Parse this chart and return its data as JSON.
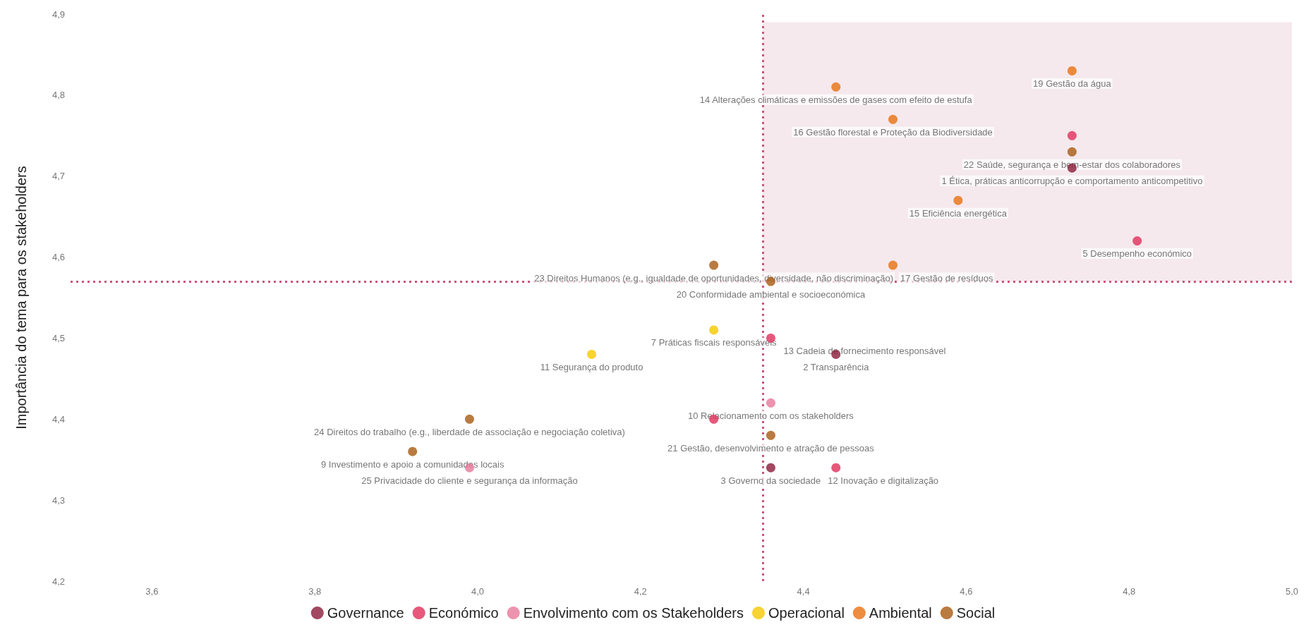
{
  "chart_data": {
    "type": "scatter",
    "ylabel": "Importância do tema para os stakeholders",
    "marker": "circle",
    "legend": "bottom",
    "grid": false,
    "xlim": [
      3.5,
      5.0
    ],
    "xticks": [
      {
        "value": 3.6,
        "label": "3,6"
      },
      {
        "value": 3.8,
        "label": "3,8"
      },
      {
        "value": 4.0,
        "label": "4,0"
      },
      {
        "value": 4.2,
        "label": "4,2"
      },
      {
        "value": 4.4,
        "label": "4,4"
      },
      {
        "value": 4.6,
        "label": "4,6"
      },
      {
        "value": 4.8,
        "label": "4,8"
      },
      {
        "value": 5.0,
        "label": "5,0"
      }
    ],
    "ylim": [
      4.2,
      4.9
    ],
    "yticks": [
      {
        "value": 4.2,
        "label": "4,2"
      },
      {
        "value": 4.3,
        "label": "4,3"
      },
      {
        "value": 4.4,
        "label": "4,4"
      },
      {
        "value": 4.5,
        "label": "4,5"
      },
      {
        "value": 4.6,
        "label": "4,6"
      },
      {
        "value": 4.7,
        "label": "4,7"
      },
      {
        "value": 4.8,
        "label": "4,8"
      },
      {
        "value": 4.9,
        "label": "4,9"
      }
    ],
    "ref_lines": [
      {
        "axis": "x",
        "value": 4.35,
        "color": "#c8557a",
        "line_style": "dotted"
      },
      {
        "axis": "y",
        "value": 4.57,
        "color": "#c8557a",
        "line_style": "dotted"
      }
    ],
    "bands": [
      {
        "axis": "y",
        "from": 4.57,
        "to": 4.89,
        "color": "#f3e4e8"
      }
    ],
    "series": [
      {
        "name": "Governance",
        "color": "#8b1a3a",
        "x": [
          4.73,
          4.44,
          4.36
        ],
        "values": [
          4.71,
          4.48,
          4.34
        ]
      },
      {
        "name": "Económico",
        "color": "#e0305a",
        "x": [
          4.73,
          4.81,
          4.36,
          4.29,
          4.44
        ],
        "values": [
          4.75,
          4.62,
          4.5,
          4.4,
          4.34
        ]
      },
      {
        "name": "Envolvimento com os Stakeholders",
        "color": "#e8789a",
        "x": [
          4.36,
          3.99
        ],
        "values": [
          4.42,
          4.34
        ]
      },
      {
        "name": "Operacional",
        "color": "#f5c800",
        "x": [
          4.29,
          4.14
        ],
        "values": [
          4.51,
          4.48
        ]
      },
      {
        "name": "Ambiental",
        "color": "#e87010",
        "x": [
          4.73,
          4.44,
          4.51,
          4.59,
          4.51
        ],
        "values": [
          4.83,
          4.81,
          4.77,
          4.67,
          4.59
        ]
      },
      {
        "name": "Social",
        "color": "#a85a10",
        "x": [
          4.73,
          4.36,
          4.29,
          3.99,
          4.36,
          3.92
        ],
        "values": [
          4.73,
          4.57,
          4.59,
          4.4,
          4.38,
          4.36
        ]
      }
    ],
    "annotations": [
      {
        "text": "19 Gestão da água",
        "x": 4.73,
        "y": 4.83
      },
      {
        "text": "14 Alterações climáticas e emissões de gases com efeito de estufa",
        "x": 4.44,
        "y": 4.81
      },
      {
        "text": "16 Gestão florestal e Proteção da Biodiversidade",
        "x": 4.51,
        "y": 4.77
      },
      {
        "text": "22 Saúde, segurança e bem-estar dos colaboradores",
        "x": 4.73,
        "y": 4.73
      },
      {
        "text": "1 Ética, práticas anticorrupção e comportamento anticompetitivo",
        "x": 4.73,
        "y": 4.71
      },
      {
        "text": "15 Eficiência energética",
        "x": 4.59,
        "y": 4.67
      },
      {
        "text": "5 Desempenho económico",
        "x": 4.81,
        "y": 4.62
      },
      {
        "text": "23 Direitos Humanos (e.g., igualdade de oportunidades, diversidade, não discriminação)",
        "x": 4.29,
        "y": 4.59
      },
      {
        "text": "20 Conformidade ambiental e socioeconómica",
        "x": 4.36,
        "y": 4.57
      },
      {
        "text": "17 Gestão de resíduos",
        "x": 4.51,
        "y": 4.59
      },
      {
        "text": "7 Práticas fiscais responsáveis",
        "x": 4.29,
        "y": 4.51
      },
      {
        "text": "13 Cadeia de fornecimento responsável",
        "x": 4.36,
        "y": 4.5
      },
      {
        "text": "11 Segurança do produto",
        "x": 4.14,
        "y": 4.48
      },
      {
        "text": "2 Transparência",
        "x": 4.44,
        "y": 4.48
      },
      {
        "text": "10 Relacionamento com os stakeholders",
        "x": 4.36,
        "y": 4.42
      },
      {
        "text": "24 Direitos do trabalho (e.g., liberdade de associação e negociação coletiva)",
        "x": 3.99,
        "y": 4.4
      },
      {
        "text": "21 Gestão, desenvolvimento e atração de pessoas",
        "x": 4.36,
        "y": 4.38
      },
      {
        "text": "9 Investimento e apoio a comunidades locais",
        "x": 3.92,
        "y": 4.36
      },
      {
        "text": "25 Privacidade do cliente e segurança da informação",
        "x": 3.99,
        "y": 4.34
      },
      {
        "text": "3 Governo da sociedade",
        "x": 4.36,
        "y": 4.34
      },
      {
        "text": "12 Inovação e digitalização",
        "x": 4.44,
        "y": 4.34
      }
    ]
  }
}
